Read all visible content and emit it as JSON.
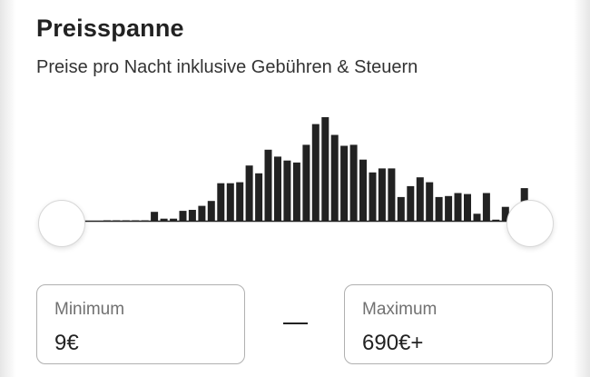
{
  "price_range": {
    "title": "Preisspanne",
    "subtitle": "Preise pro Nacht inklusive Gebühren & Steuern",
    "minimum": {
      "label": "Minimum",
      "value": "9€"
    },
    "maximum": {
      "label": "Maximum",
      "value": "690€+"
    },
    "separator": "—",
    "slider": {
      "min_position": 0,
      "max_position": 1
    }
  },
  "chart_data": {
    "type": "bar",
    "description_series": "relative listing counts per price bucket",
    "values": [
      0,
      0,
      0.5,
      0.5,
      0.5,
      1,
      1,
      10,
      3,
      3,
      11,
      12,
      16,
      21,
      39,
      39,
      40,
      57,
      49,
      73,
      66,
      62,
      60,
      78,
      99,
      106,
      88,
      77,
      78,
      63,
      50,
      54,
      54,
      25,
      36,
      45,
      40,
      25,
      26,
      29,
      28,
      8,
      29,
      2,
      15,
      3,
      34,
      18,
      10
    ],
    "max_value": 106,
    "colors": {
      "bars": "#222222",
      "baseline": "#222222"
    }
  }
}
